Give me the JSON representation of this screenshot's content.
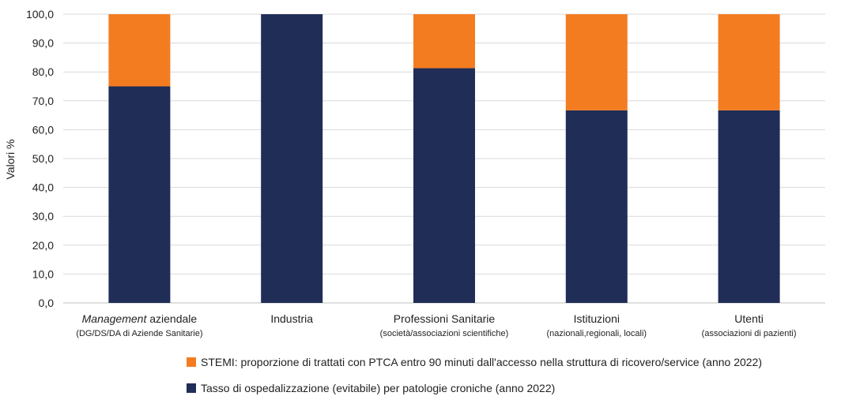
{
  "chart_data": {
    "type": "bar",
    "stacked": true,
    "ylabel": "Valori %",
    "ylim": [
      0,
      100
    ],
    "ytick_labels": [
      "0,0",
      "10,0",
      "20,0",
      "30,0",
      "40,0",
      "50,0",
      "60,0",
      "70,0",
      "80,0",
      "90,0",
      "100,0"
    ],
    "yticks": [
      0,
      10,
      20,
      30,
      40,
      50,
      60,
      70,
      80,
      90,
      100
    ],
    "grid": true,
    "legend_position": "bottom",
    "categories": [
      {
        "label_em": "Management",
        "label": " aziendale",
        "sublabel": "(DG/DS/DA di Aziende Sanitarie)"
      },
      {
        "label_em": "",
        "label": "Industria",
        "sublabel": ""
      },
      {
        "label_em": "",
        "label": "Professioni Sanitarie",
        "sublabel": "(società/associazioni scientifiche)"
      },
      {
        "label_em": "",
        "label": "Istituzioni",
        "sublabel": "(nazionali,regionali, locali)"
      },
      {
        "label_em": "",
        "label": "Utenti",
        "sublabel": "(associazioni di pazienti)"
      }
    ],
    "series": [
      {
        "name": "Tasso di ospedalizzazione (evitabile) per patologie croniche (anno 2022)",
        "color": "#1f2d57",
        "values": [
          75.0,
          100.0,
          81.3,
          66.7,
          66.7
        ]
      },
      {
        "name": "STEMI: proporzione di trattati con PTCA entro 90 minuti dall'accesso nella struttura di ricovero/service (anno 2022)",
        "color": "#f47c20",
        "values": [
          25.0,
          0.0,
          18.7,
          33.3,
          33.3
        ]
      }
    ],
    "legend_order": [
      1,
      0
    ]
  }
}
